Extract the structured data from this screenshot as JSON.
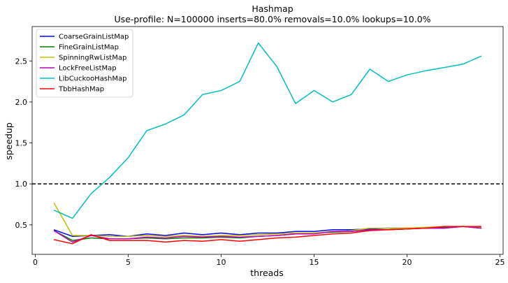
{
  "chart_data": {
    "type": "line",
    "title": "Hashmap",
    "subtitle": "Use-profile: N=100000 inserts=80.0% removals=10.0% lookups=10.0%",
    "xlabel": "threads",
    "ylabel": "speedup",
    "xlim": [
      -0.17,
      25.17
    ],
    "ylim": [
      0.14,
      2.92
    ],
    "xticks": [
      0,
      5,
      10,
      15,
      20,
      25
    ],
    "yticks": [
      0.5,
      1.0,
      1.5,
      2.0,
      2.5
    ],
    "xtick_labels": [
      "0",
      "5",
      "10",
      "15",
      "20",
      "25"
    ],
    "ytick_labels": [
      "0.5",
      "1.0",
      "1.5",
      "2.0",
      "2.5"
    ],
    "reference_line": {
      "y": 1.0,
      "style": "dashed",
      "color": "#000000"
    },
    "legend_position": "top-left",
    "x": [
      1,
      2,
      3,
      4,
      5,
      6,
      7,
      8,
      9,
      10,
      11,
      12,
      13,
      14,
      15,
      16,
      17,
      18,
      19,
      20,
      21,
      22,
      23,
      24
    ],
    "series": [
      {
        "name": "CoarseGrainListMap",
        "color": "#0000ff",
        "values": [
          0.44,
          0.36,
          0.37,
          0.38,
          0.36,
          0.39,
          0.37,
          0.4,
          0.38,
          0.4,
          0.38,
          0.4,
          0.4,
          0.42,
          0.42,
          0.44,
          0.44,
          0.45,
          0.46,
          0.46,
          0.46,
          0.46,
          0.48,
          0.46
        ]
      },
      {
        "name": "FineGrainListMap",
        "color": "#008000",
        "values": [
          0.43,
          0.31,
          0.34,
          0.33,
          0.33,
          0.34,
          0.33,
          0.34,
          0.34,
          0.35,
          0.34,
          0.36,
          0.37,
          0.39,
          0.4,
          0.41,
          0.42,
          0.44,
          0.44,
          0.45,
          0.46,
          0.47,
          0.48,
          0.46
        ]
      },
      {
        "name": "SpinningRwListMap",
        "color": "#bfbf00",
        "values": [
          0.77,
          0.37,
          0.37,
          0.36,
          0.36,
          0.37,
          0.36,
          0.37,
          0.36,
          0.37,
          0.37,
          0.38,
          0.39,
          0.4,
          0.4,
          0.42,
          0.43,
          0.46,
          0.46,
          0.46,
          0.47,
          0.48,
          0.48,
          0.47
        ]
      },
      {
        "name": "LockFreeListMap",
        "color": "#bf00bf",
        "values": [
          0.43,
          0.29,
          0.37,
          0.33,
          0.33,
          0.35,
          0.34,
          0.36,
          0.35,
          0.36,
          0.35,
          0.36,
          0.37,
          0.39,
          0.39,
          0.42,
          0.42,
          0.44,
          0.44,
          0.45,
          0.46,
          0.46,
          0.48,
          0.46
        ]
      },
      {
        "name": "LibCuckooHashMap",
        "color": "#00bfbf",
        "values": [
          0.68,
          0.58,
          0.88,
          1.08,
          1.32,
          1.65,
          1.73,
          1.84,
          2.09,
          2.14,
          2.25,
          2.72,
          2.43,
          1.98,
          2.14,
          2.0,
          2.09,
          2.4,
          2.25,
          2.33,
          2.38,
          2.42,
          2.46,
          2.56
        ]
      },
      {
        "name": "TbbHashMap",
        "color": "#ff0000",
        "values": [
          0.32,
          0.27,
          0.38,
          0.31,
          0.31,
          0.31,
          0.29,
          0.31,
          0.3,
          0.32,
          0.3,
          0.32,
          0.34,
          0.35,
          0.37,
          0.39,
          0.4,
          0.43,
          0.44,
          0.45,
          0.46,
          0.48,
          0.48,
          0.48
        ]
      }
    ]
  }
}
